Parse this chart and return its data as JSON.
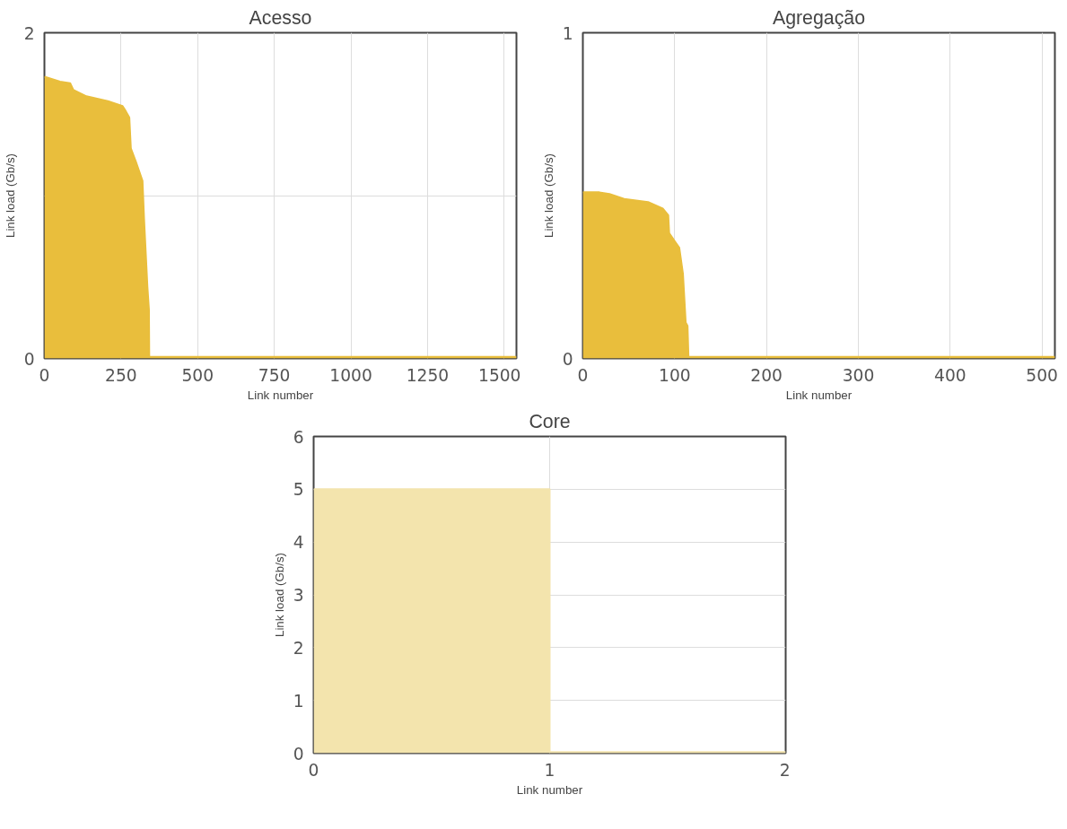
{
  "chart_data": [
    {
      "type": "area",
      "title": "Acesso",
      "xlabel": "Link number",
      "ylabel": "Link load (Gb/s)",
      "xlim": [
        0,
        1540
      ],
      "ylim": [
        0,
        2
      ],
      "xticks": [
        0,
        250,
        500,
        750,
        1000,
        1250,
        1500
      ],
      "yticks": [
        0,
        {
          "value": 1,
          "label": null
        },
        2
      ],
      "grid": true,
      "series": [
        {
          "color": "#e9be3c",
          "x": [
            0,
            51,
            84,
            94,
            137,
            207,
            255,
            265,
            277,
            282,
            298,
            320,
            325,
            336,
            341,
            342,
            1540
          ],
          "values": [
            1.73,
            1.7,
            1.69,
            1.65,
            1.61,
            1.58,
            1.55,
            1.52,
            1.48,
            1.29,
            1.21,
            1.09,
            0.86,
            0.44,
            0.3,
            0.01,
            0.01
          ]
        }
      ]
    },
    {
      "type": "area",
      "title": "Agregação",
      "xlabel": "Link number",
      "ylabel": "Link load (Gb/s)",
      "xlim": [
        0,
        514
      ],
      "ylim": [
        0,
        1
      ],
      "xticks": [
        0,
        100,
        200,
        300,
        400,
        500
      ],
      "yticks": [
        0,
        1
      ],
      "grid": "x",
      "series": [
        {
          "color": "#e9be3c",
          "x": [
            0,
            18,
            29,
            45,
            71,
            87,
            93,
            94,
            100,
            105,
            109,
            112,
            114,
            115,
            514
          ],
          "values": [
            0.51,
            0.51,
            0.505,
            0.49,
            0.48,
            0.46,
            0.44,
            0.385,
            0.36,
            0.34,
            0.26,
            0.11,
            0.1,
            0.005,
            0.005
          ]
        }
      ]
    },
    {
      "type": "area",
      "title": "Core",
      "xlabel": "Link number",
      "ylabel": "Link load (Gb/s)",
      "xlim": [
        0,
        2
      ],
      "ylim": [
        0,
        6
      ],
      "xticks": [
        0,
        1,
        2
      ],
      "yticks": [
        0,
        1,
        2,
        3,
        4,
        5,
        6
      ],
      "grid": true,
      "series": [
        {
          "color": "#f3e4ad",
          "x": [
            0,
            1,
            1,
            2
          ],
          "values": [
            5.0,
            5.0,
            0.02,
            0.02
          ]
        }
      ]
    }
  ]
}
